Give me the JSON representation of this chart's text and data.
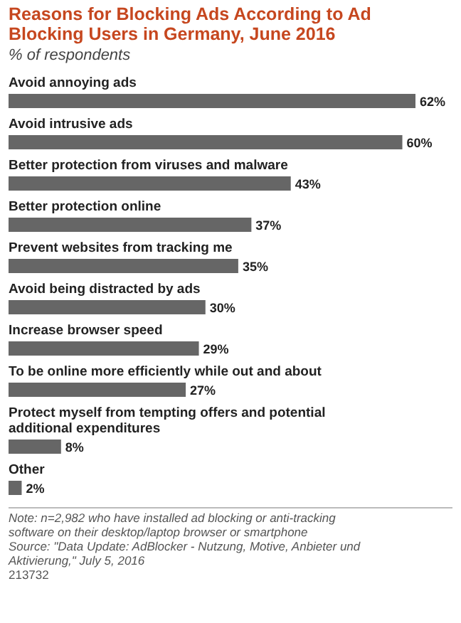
{
  "chart_data": {
    "type": "bar",
    "orientation": "horizontal",
    "title": "Reasons for Blocking Ads According to Ad Blocking Users in Germany, June 2016",
    "subtitle": "% of respondents",
    "categories": [
      "Avoid annoying ads",
      "Avoid intrusive ads",
      "Better protection from viruses and malware",
      "Better protection online",
      "Prevent websites from tracking me",
      "Avoid being distracted by ads",
      "Increase browser speed",
      "To be online more efficiently while out and about",
      "Protect myself from tempting offers and potential additional expenditures",
      "Other"
    ],
    "values": [
      62,
      60,
      43,
      37,
      35,
      30,
      29,
      27,
      8,
      2
    ],
    "value_labels": [
      "62%",
      "60%",
      "43%",
      "37%",
      "35%",
      "30%",
      "29%",
      "27%",
      "8%",
      "2%"
    ],
    "color": "#666666",
    "annotations": [
      "Note: n=2,982 who have installed ad blocking or anti-tracking software on their desktop/laptop browser or smartphone",
      "Source: \"Data Update: AdBlocker - Nutzung, Motive, Anbieter und Aktivierung,\" July 5, 2016",
      "213732"
    ]
  }
}
